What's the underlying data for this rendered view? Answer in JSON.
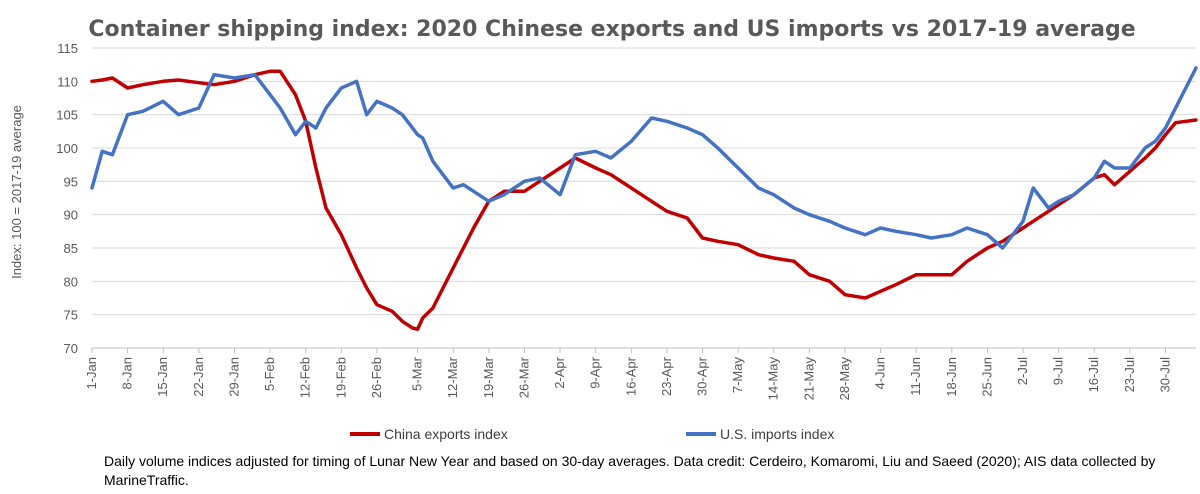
{
  "chart_data": {
    "type": "line",
    "title": "Container shipping index: 2020 Chinese exports and US imports vs 2017-19 average",
    "ylabel": "Index: 100 = 2017-19 average",
    "xlabel": "",
    "ylim": [
      70,
      115
    ],
    "yticks": [
      70,
      75,
      80,
      85,
      90,
      95,
      100,
      105,
      110,
      115
    ],
    "x_start": "1-Jan",
    "x_end": "5-Aug",
    "xticks": [
      "1-Jan",
      "8-Jan",
      "15-Jan",
      "22-Jan",
      "29-Jan",
      "5-Feb",
      "12-Feb",
      "19-Feb",
      "26-Feb",
      "5-Mar",
      "12-Mar",
      "19-Mar",
      "26-Mar",
      "2-Apr",
      "9-Apr",
      "16-Apr",
      "23-Apr",
      "30-Apr",
      "7-May",
      "14-May",
      "21-May",
      "28-May",
      "4-Jun",
      "11-Jun",
      "18-Jun",
      "25-Jun",
      "2-Jul",
      "9-Jul",
      "16-Jul",
      "23-Jul",
      "30-Jul"
    ],
    "grid": "horizontal",
    "legend_position": "bottom",
    "x": [
      "1-Jan",
      "3-Jan",
      "5-Jan",
      "8-Jan",
      "11-Jan",
      "15-Jan",
      "18-Jan",
      "22-Jan",
      "25-Jan",
      "29-Jan",
      "2-Feb",
      "5-Feb",
      "7-Feb",
      "10-Feb",
      "12-Feb",
      "14-Feb",
      "16-Feb",
      "19-Feb",
      "22-Feb",
      "24-Feb",
      "26-Feb",
      "29-Feb",
      "2-Mar",
      "4-Mar",
      "5-Mar",
      "6-Mar",
      "8-Mar",
      "10-Mar",
      "12-Mar",
      "14-Mar",
      "16-Mar",
      "19-Mar",
      "22-Mar",
      "26-Mar",
      "29-Mar",
      "2-Apr",
      "5-Apr",
      "9-Apr",
      "12-Apr",
      "16-Apr",
      "20-Apr",
      "23-Apr",
      "27-Apr",
      "30-Apr",
      "3-May",
      "7-May",
      "11-May",
      "14-May",
      "18-May",
      "21-May",
      "25-May",
      "28-May",
      "1-Jun",
      "4-Jun",
      "7-Jun",
      "11-Jun",
      "14-Jun",
      "18-Jun",
      "21-Jun",
      "25-Jun",
      "28-Jun",
      "2-Jul",
      "4-Jul",
      "7-Jul",
      "9-Jul",
      "12-Jul",
      "16-Jul",
      "18-Jul",
      "20-Jul",
      "23-Jul",
      "26-Jul",
      "28-Jul",
      "30-Jul",
      "1-Aug",
      "3-Aug",
      "5-Aug"
    ],
    "series": [
      {
        "name": "China exports index",
        "color": "#c00000",
        "values": [
          110,
          110.2,
          110.5,
          109,
          109.5,
          110,
          110.2,
          109.8,
          109.5,
          110,
          111,
          111.5,
          111.5,
          108,
          104,
          97,
          91,
          87,
          82,
          79,
          76.5,
          75.5,
          74,
          73,
          72.8,
          74.5,
          76,
          79,
          82,
          85,
          88,
          92,
          93.5,
          93.5,
          95,
          97,
          98.5,
          97,
          96,
          94,
          92,
          90.5,
          89.5,
          86.5,
          86,
          85.5,
          84,
          83.5,
          83,
          81,
          80,
          78,
          77.5,
          78.5,
          79.5,
          81,
          81,
          81,
          83,
          85,
          86,
          88,
          89,
          90.5,
          91.5,
          93,
          95.5,
          96,
          94.5,
          96.5,
          98.5,
          100,
          102,
          103.8,
          104,
          104.2
        ]
      },
      {
        "name": "U.S. imports index",
        "color": "#4472c4",
        "values": [
          94,
          99.5,
          99,
          105,
          105.5,
          107,
          105,
          106,
          111,
          110.5,
          111,
          108,
          106,
          102,
          104,
          103,
          106,
          109,
          110,
          105,
          107,
          106,
          105,
          103,
          102,
          101.5,
          98,
          96,
          94,
          94.5,
          93.5,
          92,
          93,
          95,
          95.5,
          93,
          99,
          99.5,
          98.5,
          101,
          104.5,
          104,
          103,
          102,
          100,
          97,
          94,
          93,
          91,
          90,
          89,
          88,
          87,
          88,
          87.5,
          87,
          86.5,
          87,
          88,
          87,
          85,
          89,
          94,
          91,
          92,
          93,
          95.5,
          98,
          97,
          97,
          100,
          101,
          103,
          106,
          109,
          112
        ]
      }
    ]
  },
  "caption": "Daily volume indices adjusted for timing of Lunar New Year and based on 30-day averages. Data credit: Cerdeiro, Komaromi, Liu and Saeed (2020); AIS data collected by MarineTraffic."
}
